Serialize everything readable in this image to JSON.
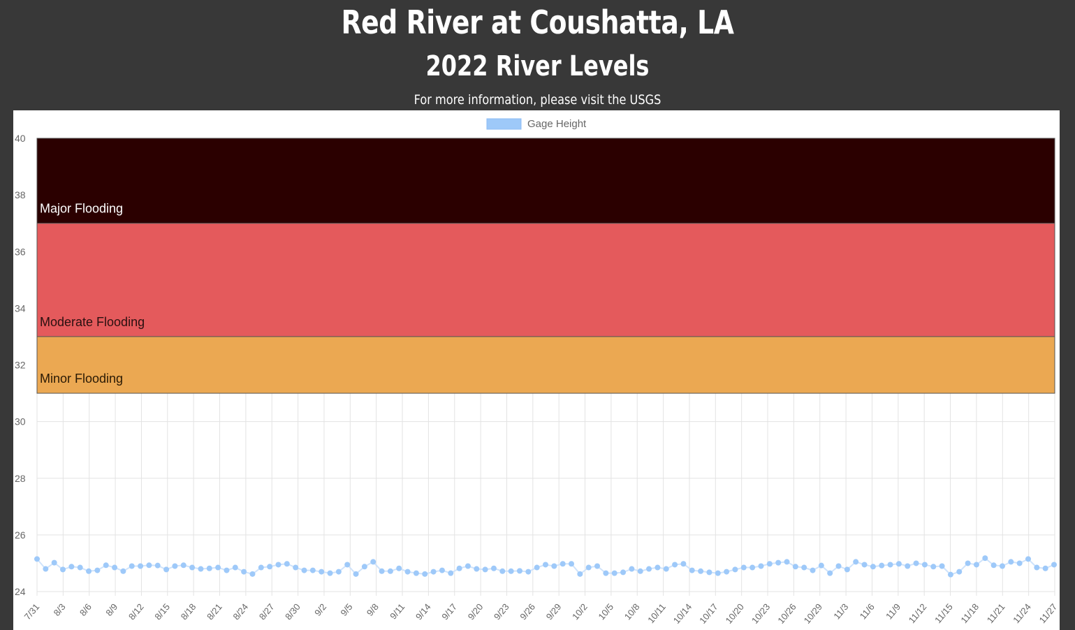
{
  "page": {
    "title": "Red River at Coushatta, LA",
    "subtitle": "2022 River Levels",
    "info": "For more information, please visit the USGS"
  },
  "colors": {
    "background": "#383838",
    "panel": "#ffffff",
    "series_line": "#cfe3fb",
    "series_point": "#9ec9f9",
    "major": "#2b0000",
    "moderate": "#e45a5c",
    "minor": "#eba852",
    "grid": "#e3e3e3"
  },
  "chart_data": {
    "type": "line",
    "legend": {
      "position": "top",
      "label": "Gage Height"
    },
    "grid": true,
    "ylim": [
      24,
      40
    ],
    "y_ticks": [
      24,
      26,
      28,
      30,
      32,
      34,
      36,
      38,
      40
    ],
    "x_ticks": [
      "7/31",
      "8/3",
      "8/6",
      "8/9",
      "8/12",
      "8/15",
      "8/18",
      "8/21",
      "8/24",
      "8/27",
      "8/30",
      "9/2",
      "9/5",
      "9/8",
      "9/11",
      "9/14",
      "9/17",
      "9/20",
      "9/23",
      "9/26",
      "9/29",
      "10/2",
      "10/5",
      "10/8",
      "10/11",
      "10/14",
      "10/17",
      "10/20",
      "10/23",
      "10/26",
      "10/29",
      "11/3",
      "11/6",
      "11/9",
      "11/12",
      "11/15",
      "11/18",
      "11/21",
      "11/24",
      "11/27"
    ],
    "bands": [
      {
        "label": "Major Flooding",
        "from": 37,
        "to": 40,
        "color": "#2b0000",
        "text_color": "#ffffff"
      },
      {
        "label": "Moderate Flooding",
        "from": 33,
        "to": 37,
        "color": "#e45a5c",
        "text_color": "#2a1010"
      },
      {
        "label": "Minor Flooding",
        "from": 31,
        "to": 33,
        "color": "#eba852",
        "text_color": "#2a1a05"
      }
    ],
    "series": [
      {
        "name": "Gage Height",
        "values": [
          25.15,
          24.8,
          25.02,
          24.78,
          24.88,
          24.85,
          24.72,
          24.75,
          24.93,
          24.85,
          24.72,
          24.9,
          24.9,
          24.93,
          24.92,
          24.78,
          24.9,
          24.93,
          24.85,
          24.8,
          24.82,
          24.85,
          24.75,
          24.85,
          24.7,
          24.62,
          24.85,
          24.88,
          24.95,
          24.98,
          24.85,
          24.75,
          24.75,
          24.7,
          24.65,
          24.7,
          24.95,
          24.62,
          24.88,
          25.05,
          24.72,
          24.72,
          24.82,
          24.7,
          24.65,
          24.62,
          24.7,
          24.75,
          24.65,
          24.82,
          24.9,
          24.8,
          24.78,
          24.82,
          24.72,
          24.72,
          24.73,
          24.7,
          24.85,
          24.95,
          24.9,
          24.98,
          24.98,
          24.62,
          24.85,
          24.9,
          24.65,
          24.65,
          24.68,
          24.8,
          24.72,
          24.8,
          24.85,
          24.8,
          24.95,
          24.98,
          24.75,
          24.72,
          24.68,
          24.65,
          24.7,
          24.78,
          24.85,
          24.85,
          24.9,
          24.98,
          25.02,
          25.05,
          24.88,
          24.85,
          24.75,
          24.92,
          24.65,
          24.9,
          24.78,
          25.05,
          24.95,
          24.88,
          24.92,
          24.95,
          24.98,
          24.9,
          25.0,
          24.95,
          24.88,
          24.9,
          24.6,
          24.7,
          25.0,
          24.95,
          25.18,
          24.93,
          24.9,
          25.05,
          25.0,
          25.15,
          24.85,
          24.82,
          24.95
        ]
      }
    ]
  }
}
